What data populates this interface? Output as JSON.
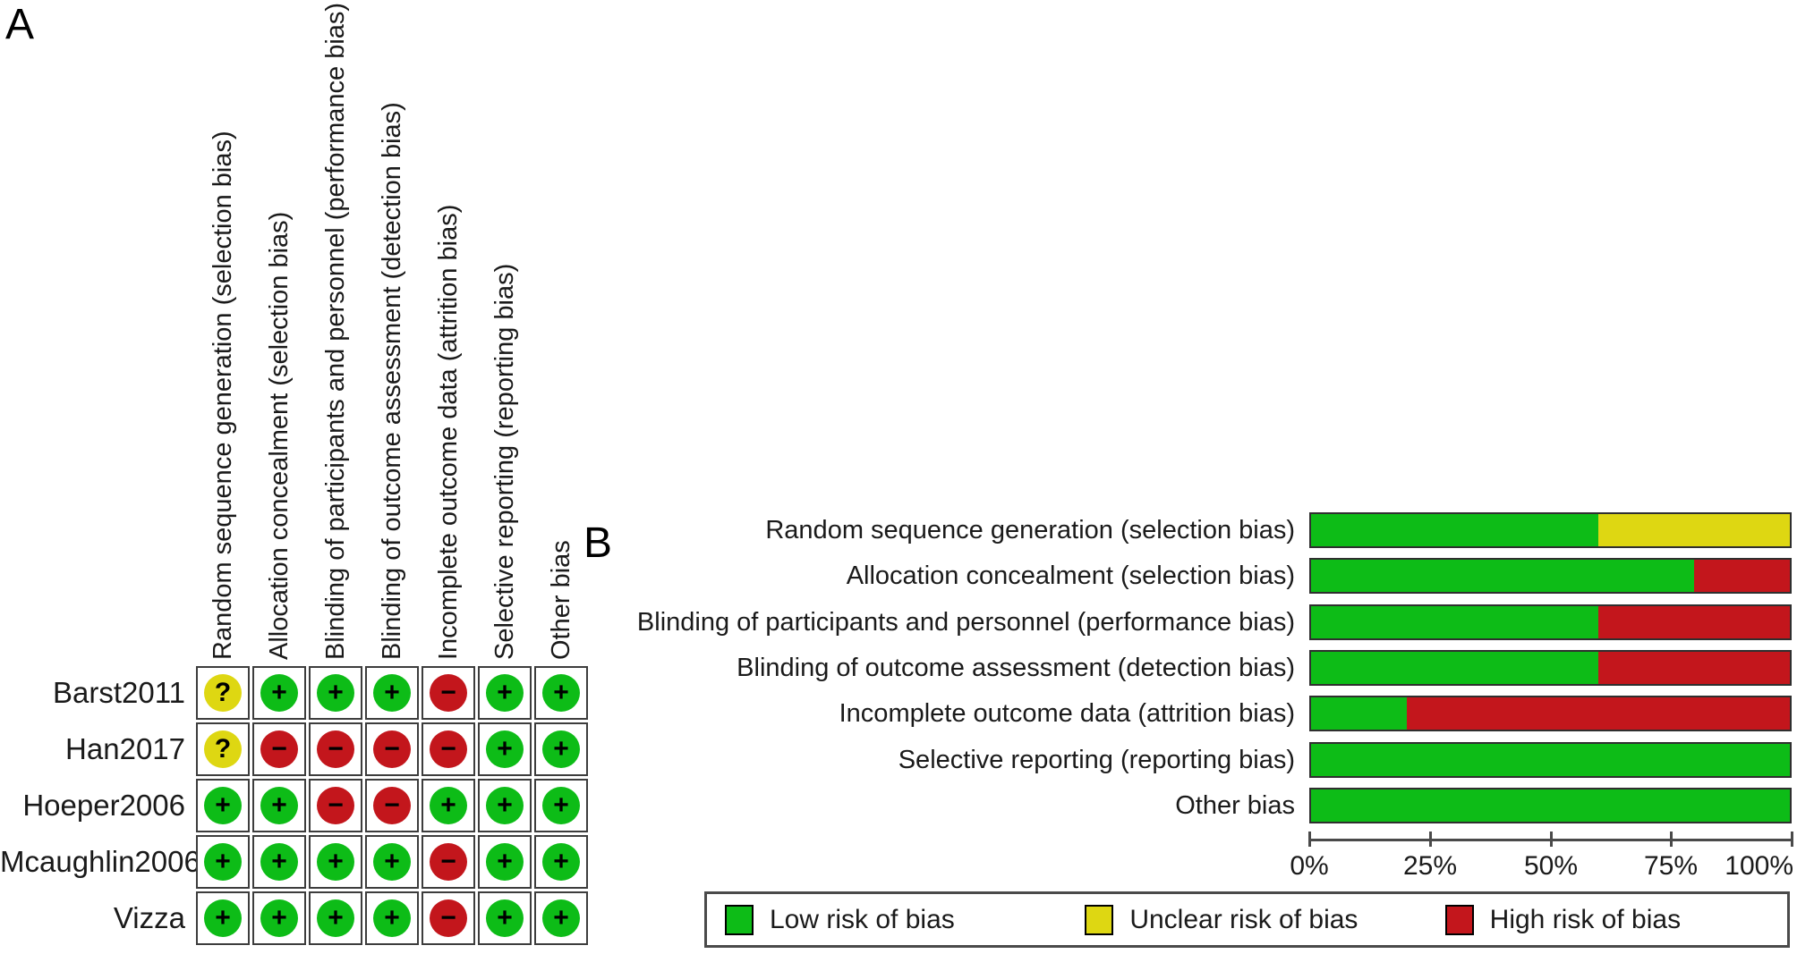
{
  "figure": {
    "panel_a_label": "A",
    "panel_b_label": "B"
  },
  "bias_domains": [
    "Random sequence generation (selection bias)",
    "Allocation concealment (selection bias)",
    "Blinding of participants and personnel (performance bias)",
    "Blinding of outcome assessment (detection bias)",
    "Incomplete outcome data (attrition bias)",
    "Selective reporting (reporting bias)",
    "Other bias"
  ],
  "risk_levels": {
    "low": {
      "label": "Low risk of bias",
      "symbol": "+",
      "color": "#0dbc17"
    },
    "unclear": {
      "label": "Unclear risk of bias",
      "symbol": "?",
      "color": "#ded712"
    },
    "high": {
      "label": "High risk of bias",
      "symbol": "−",
      "color": "#c3161c"
    }
  },
  "summary_table": {
    "studies": [
      "Barst2011",
      "Han2017",
      "Hoeper2006",
      "Mcaughlin2006",
      "Vizza"
    ],
    "judgements": [
      [
        "unclear",
        "low",
        "low",
        "low",
        "high",
        "low",
        "low"
      ],
      [
        "unclear",
        "high",
        "high",
        "high",
        "high",
        "low",
        "low"
      ],
      [
        "low",
        "low",
        "high",
        "high",
        "low",
        "low",
        "low"
      ],
      [
        "low",
        "low",
        "low",
        "low",
        "high",
        "low",
        "low"
      ],
      [
        "low",
        "low",
        "low",
        "low",
        "high",
        "low",
        "low"
      ]
    ]
  },
  "chart_data": {
    "type": "bar",
    "orientation": "horizontal",
    "stacked": true,
    "categories": [
      "Random sequence generation (selection bias)",
      "Allocation concealment (selection bias)",
      "Blinding of participants and personnel (performance bias)",
      "Blinding of outcome assessment (detection bias)",
      "Incomplete outcome data (attrition bias)",
      "Selective reporting (reporting bias)",
      "Other bias"
    ],
    "series": [
      {
        "name": "Low risk of bias",
        "key": "low",
        "values": [
          60,
          80,
          60,
          60,
          20,
          100,
          100
        ]
      },
      {
        "name": "Unclear risk of bias",
        "key": "unclear",
        "values": [
          40,
          0,
          0,
          0,
          0,
          0,
          0
        ]
      },
      {
        "name": "High risk of bias",
        "key": "high",
        "values": [
          0,
          20,
          40,
          40,
          80,
          0,
          0
        ]
      }
    ],
    "xlim": [
      0,
      100
    ],
    "x_tick_labels": [
      "0%",
      "25%",
      "50%",
      "75%",
      "100%"
    ],
    "grid": false,
    "legend_position": "bottom"
  }
}
